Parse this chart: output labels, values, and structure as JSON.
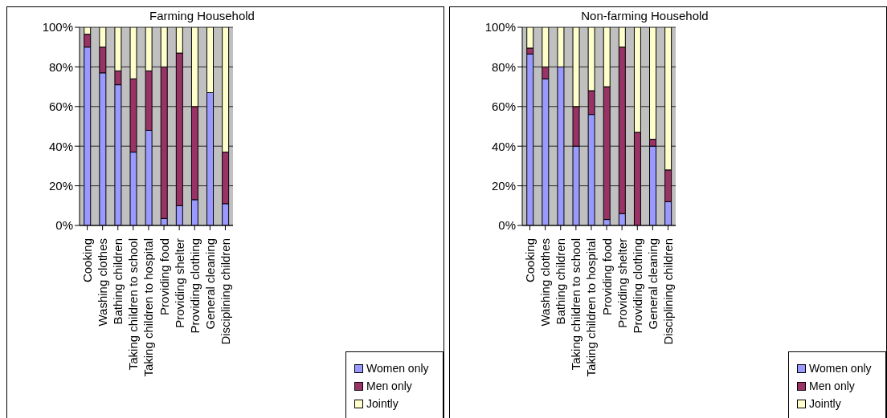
{
  "chart_data": [
    {
      "type": "bar",
      "title": "Farming Household",
      "stacked": true,
      "grid": "y",
      "legend": "bottom right",
      "categories": [
        "Cooking",
        "Washing clothes",
        "Bathing children",
        "Taking children to school",
        "Taking children to hospital",
        "Providing  food",
        "Providing shelter",
        "Providing clothing",
        "General cleaning",
        "Disciplining children"
      ],
      "ylim": [
        0,
        100
      ],
      "yticks": [
        {
          "value": 0,
          "label": "0%"
        },
        {
          "value": 20,
          "label": "20%"
        },
        {
          "value": 40,
          "label": "40%"
        },
        {
          "value": 60,
          "label": "60%"
        },
        {
          "value": 80,
          "label": "80%"
        },
        {
          "value": 100,
          "label": "100%"
        }
      ],
      "series": [
        {
          "name": "Women only",
          "color": "#9999ff",
          "values": [
            90,
            77,
            71,
            37,
            48,
            3.5,
            10,
            13,
            67,
            11
          ]
        },
        {
          "name": "Men only",
          "color": "#993366",
          "values": [
            6.5,
            13,
            7,
            37,
            30,
            76.5,
            77,
            47,
            0,
            26
          ]
        },
        {
          "name": "Jointly",
          "color": "#ffffcc",
          "values": [
            3.5,
            10,
            22,
            26,
            22,
            20,
            13,
            40,
            33,
            63
          ]
        }
      ]
    },
    {
      "type": "bar",
      "title": "Non-farming Household",
      "stacked": true,
      "grid": "y",
      "legend": "bottom right",
      "categories": [
        "Cooking",
        "Washing clothes",
        "Bathing children",
        "Taking children to school",
        "Taking children to hospital",
        "Providing  food",
        "Providing shelter",
        "Providing clothing",
        "General cleaning",
        "Disciplining children"
      ],
      "ylim": [
        0,
        100
      ],
      "yticks": [
        {
          "value": 0,
          "label": "0%"
        },
        {
          "value": 20,
          "label": "20%"
        },
        {
          "value": 40,
          "label": "40%"
        },
        {
          "value": 60,
          "label": "60%"
        },
        {
          "value": 80,
          "label": "80%"
        },
        {
          "value": 100,
          "label": "100%"
        }
      ],
      "series": [
        {
          "name": "Women only",
          "color": "#9999ff",
          "values": [
            86.5,
            74,
            80,
            40,
            56,
            3,
            6,
            0,
            40,
            12
          ]
        },
        {
          "name": "Men only",
          "color": "#993366",
          "values": [
            3,
            6,
            0,
            20,
            12,
            67,
            84,
            47,
            3.5,
            16
          ]
        },
        {
          "name": "Jointly",
          "color": "#ffffcc",
          "values": [
            10.5,
            20,
            20,
            40,
            32,
            30,
            10,
            53,
            56.5,
            72
          ]
        }
      ]
    }
  ]
}
